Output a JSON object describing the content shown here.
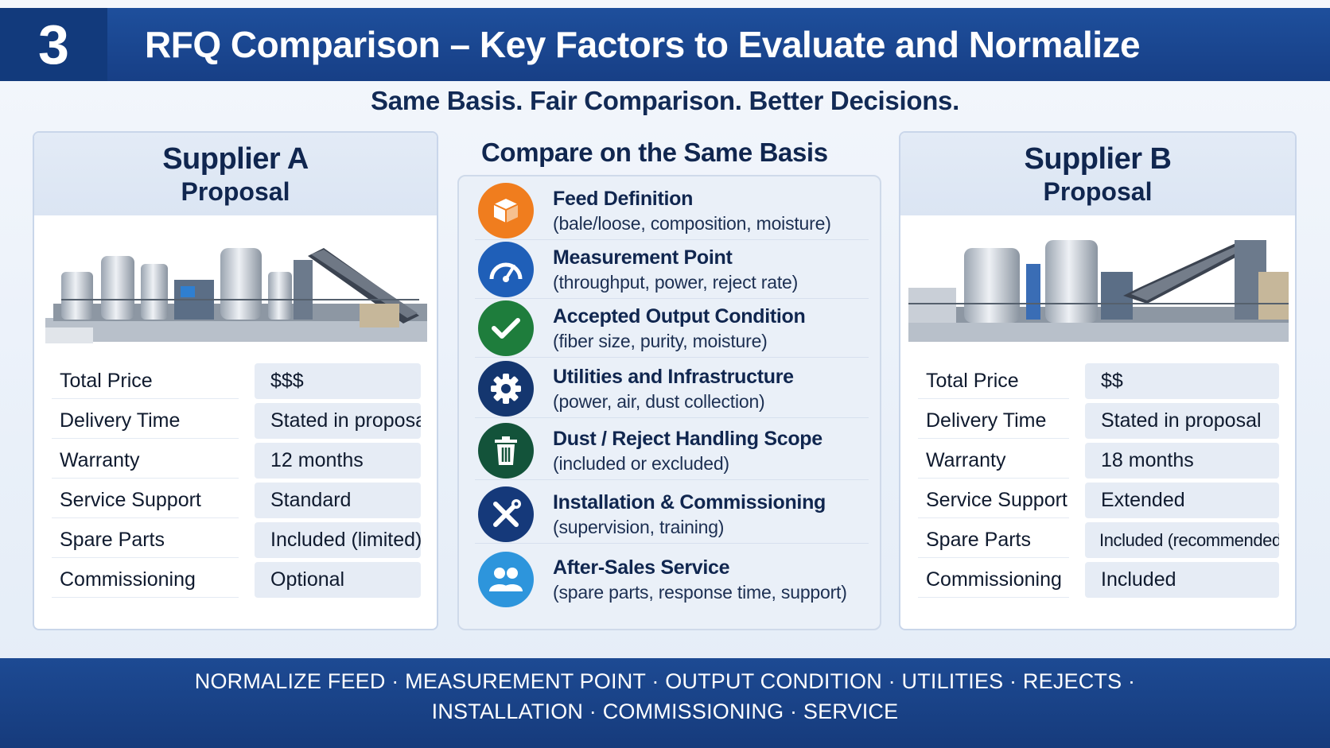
{
  "header": {
    "number": "3",
    "title": "RFQ Comparison – Key Factors to Evaluate and Normalize"
  },
  "subtitle": "Same Basis. Fair Comparison. Better Decisions.",
  "supplier_a": {
    "name": "Supplier A",
    "sub": "Proposal",
    "rows": [
      {
        "label": "Total Price",
        "value": "$$$"
      },
      {
        "label": "Delivery Time",
        "value": "Stated in proposal"
      },
      {
        "label": "Warranty",
        "value": "12 months"
      },
      {
        "label": "Service Support",
        "value": "Standard"
      },
      {
        "label": "Spare Parts",
        "value": "Included (limited)"
      },
      {
        "label": "Commissioning",
        "value": "Optional"
      }
    ]
  },
  "supplier_b": {
    "name": "Supplier B",
    "sub": "Proposal",
    "rows": [
      {
        "label": "Total Price",
        "value": "$$"
      },
      {
        "label": "Delivery Time",
        "value": "Stated in proposal"
      },
      {
        "label": "Warranty",
        "value": "18 months"
      },
      {
        "label": "Service Support",
        "value": "Extended"
      },
      {
        "label": "Spare Parts",
        "value": "Included (recommended)"
      },
      {
        "label": "Commissioning",
        "value": "Included"
      }
    ]
  },
  "center": {
    "title": "Compare on the Same Basis",
    "factors": [
      {
        "title": "Feed Definition",
        "detail": "(bale/loose, composition, moisture)",
        "icon": "box-icon",
        "color": "#f07d1e"
      },
      {
        "title": "Measurement Point",
        "detail": "(throughput, power, reject rate)",
        "icon": "gauge-icon",
        "color": "#1f5fb8"
      },
      {
        "title": "Accepted Output Condition",
        "detail": "(fiber size, purity, moisture)",
        "icon": "check-icon",
        "color": "#1e7d3c"
      },
      {
        "title": "Utilities and Infrastructure",
        "detail": "(power, air, dust collection)",
        "icon": "gear-icon",
        "color": "#14366f"
      },
      {
        "title": "Dust / Reject Handling Scope",
        "detail": "(included or excluded)",
        "icon": "trash-icon",
        "color": "#13533a"
      },
      {
        "title": "Installation & Commissioning",
        "detail": "(supervision, training)",
        "icon": "tools-icon",
        "color": "#15397a"
      },
      {
        "title": "After-Sales Service",
        "detail": "(spare parts, response time, support)",
        "icon": "people-icon",
        "color": "#2d95dc"
      }
    ]
  },
  "footer": {
    "line1": "NORMALIZE FEED · MEASUREMENT POINT · OUTPUT CONDITION · UTILITIES · REJECTS ·",
    "line2": "INSTALLATION · COMMISSIONING · SERVICE"
  }
}
